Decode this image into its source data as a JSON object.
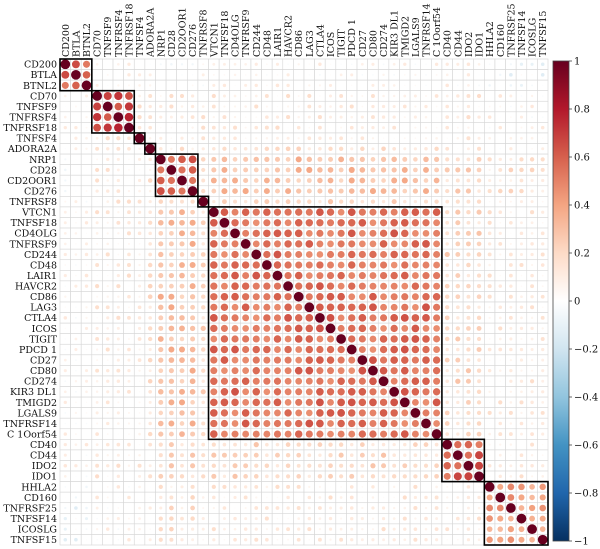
{
  "chart_data": {
    "type": "heatmap",
    "title": "",
    "variables": [
      "CD200",
      "BTLA",
      "BTNL2",
      "CD70",
      "TNFSF9",
      "TNFRSF4",
      "TNFRSF18",
      "TNFSF4",
      "ADORA2A",
      "NRP1",
      "CD28",
      "CD2OOR1",
      "CD276",
      "TNFRSF8",
      "VTCN1",
      "TNFSF18",
      "CD4OLG",
      "TNFRSF9",
      "CD244",
      "CD48",
      "LAIR1",
      "HAVCR2",
      "CD86",
      "LAG3",
      "CTLA4",
      "ICOS",
      "TIGIT",
      "PDCD 1",
      "CD27",
      "CD80",
      "CD274",
      "KIR3 DL1",
      "TMIGD2",
      "LGALS9",
      "TNFRSF14",
      "C 1Oorf54",
      "CD40",
      "CD44",
      "IDO2",
      "IDO1",
      "HHLA2",
      "CD160",
      "TNFRSF25",
      "TNFSF14",
      "ICOSLG",
      "TNFSF15"
    ],
    "cluster_blocks": [
      {
        "start": 0,
        "end": 2
      },
      {
        "start": 3,
        "end": 6
      },
      {
        "start": 7,
        "end": 7
      },
      {
        "start": 8,
        "end": 8
      },
      {
        "start": 9,
        "end": 12
      },
      {
        "start": 13,
        "end": 13
      },
      {
        "start": 14,
        "end": 35
      },
      {
        "start": 36,
        "end": 39
      },
      {
        "start": 40,
        "end": 45
      }
    ],
    "block_correlation": [
      [
        0.6,
        0.05,
        0.05,
        0.05,
        0.0,
        0.05,
        0.05,
        0.05,
        -0.05
      ],
      [
        0.05,
        0.7,
        0.1,
        0.1,
        0.1,
        0.1,
        0.1,
        0.1,
        0.05
      ],
      [
        0.05,
        0.1,
        1.0,
        0.1,
        0.1,
        0.1,
        0.1,
        0.1,
        0.05
      ],
      [
        0.05,
        0.1,
        0.1,
        1.0,
        0.15,
        0.1,
        0.15,
        0.1,
        0.05
      ],
      [
        0.0,
        0.1,
        0.1,
        0.15,
        0.6,
        0.25,
        0.3,
        0.2,
        0.15
      ],
      [
        0.05,
        0.1,
        0.1,
        0.1,
        0.25,
        1.0,
        0.2,
        0.15,
        0.1
      ],
      [
        0.05,
        0.1,
        0.1,
        0.15,
        0.3,
        0.2,
        0.55,
        0.2,
        0.1
      ],
      [
        0.05,
        0.1,
        0.1,
        0.1,
        0.2,
        0.15,
        0.2,
        0.6,
        0.1
      ],
      [
        -0.05,
        0.05,
        0.05,
        0.05,
        0.15,
        0.1,
        0.1,
        0.1,
        0.4
      ]
    ],
    "colorbar": {
      "min": -1,
      "max": 1,
      "ticks": [
        "1",
        "0.8",
        "0.6",
        "0.4",
        "0.2",
        "0",
        "−0.2",
        "−0.4",
        "−0.6",
        "−0.8",
        "−1"
      ],
      "colors": [
        "#053061",
        "#2166ac",
        "#4393c3",
        "#92c5de",
        "#d1e5f0",
        "#ffffff",
        "#fddbc7",
        "#f4a582",
        "#d6604d",
        "#b2182b",
        "#67001f"
      ]
    },
    "grid": true
  }
}
